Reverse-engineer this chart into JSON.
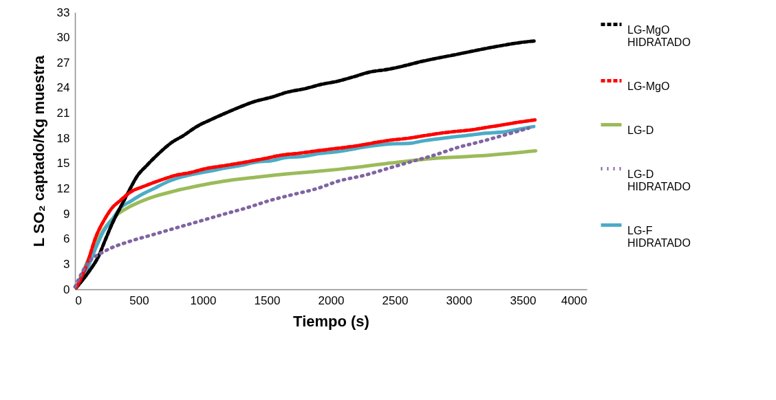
{
  "chart_data": {
    "type": "line",
    "xlabel": "Tiempo (s)",
    "ylabel": "L SO₂ captado/Kg muestra",
    "xlim": [
      0,
      4000
    ],
    "xticks": [
      0,
      500,
      1000,
      1500,
      2000,
      2500,
      3000,
      3500,
      4000
    ],
    "ylim": [
      0,
      33
    ],
    "yticks": [
      0,
      3,
      6,
      9,
      12,
      15,
      18,
      21,
      24,
      27,
      30,
      33
    ],
    "grid": false,
    "legend": "right",
    "marker": "none",
    "series": [
      {
        "name": "LG-MgO HIDRATADO",
        "color": "#000000",
        "line_style": "dashed",
        "x": [
          10,
          113,
          183,
          237,
          290,
          380,
          435,
          478,
          570,
          656,
          756,
          845,
          952,
          1059,
          1177,
          1285,
          1409,
          1538,
          1661,
          1796,
          1919,
          2054,
          2172,
          2306,
          2441,
          2565,
          2694,
          2817,
          2952,
          3081,
          3210,
          3355,
          3478,
          3600
        ],
        "values": [
          0.2,
          2.2,
          3.9,
          5.9,
          7.8,
          10.5,
          12.1,
          13.3,
          14.9,
          16.2,
          17.5,
          18.3,
          19.4,
          20.2,
          21.0,
          21.7,
          22.4,
          22.9,
          23.5,
          23.9,
          24.4,
          24.8,
          25.3,
          25.9,
          26.2,
          26.6,
          27.1,
          27.5,
          27.9,
          28.3,
          28.7,
          29.1,
          29.4,
          29.6
        ]
      },
      {
        "name": "LG-MgO",
        "color": "#ff0000",
        "line_style": "dashed",
        "x": [
          10,
          91,
          167,
          226,
          290,
          355,
          435,
          543,
          667,
          790,
          898,
          1027,
          1150,
          1274,
          1382,
          1489,
          1618,
          1742,
          1887,
          1995,
          2242,
          2350,
          2479,
          2602,
          2726,
          2855,
          2962,
          3097,
          3220,
          3344,
          3462,
          3600
        ],
        "values": [
          0.2,
          2.9,
          6.4,
          8.2,
          9.7,
          10.6,
          11.6,
          12.3,
          13.0,
          13.6,
          13.9,
          14.4,
          14.7,
          15.0,
          15.3,
          15.6,
          16.0,
          16.2,
          16.5,
          16.7,
          17.2,
          17.5,
          17.8,
          18.0,
          18.3,
          18.6,
          18.8,
          19.0,
          19.3,
          19.6,
          19.9,
          20.2
        ]
      },
      {
        "name": "LG-D",
        "color": "#9bbb59",
        "line_style": "solid",
        "x": [
          10,
          91,
          167,
          237,
          306,
          398,
          505,
          629,
          774,
          952,
          1167,
          1382,
          1618,
          1849,
          2059,
          2441,
          2801,
          3156,
          3600
        ],
        "values": [
          0.2,
          3.1,
          5.6,
          7.4,
          8.6,
          9.6,
          10.4,
          11.1,
          11.7,
          12.3,
          12.9,
          13.3,
          13.7,
          14.0,
          14.3,
          15.0,
          15.6,
          15.9,
          16.5
        ]
      },
      {
        "name": "LG-D HIDRATADO",
        "color": "#8064a2",
        "line_style": "dotted",
        "x": [
          0,
          90,
          240,
          425,
          605,
          785,
          970,
          1150,
          1340,
          1525,
          1705,
          1890,
          2060,
          2265,
          2445,
          2625,
          2810,
          2990,
          3170,
          3360,
          3545
        ],
        "values": [
          0.3,
          2.9,
          4.6,
          5.7,
          6.5,
          7.3,
          8.1,
          8.9,
          9.7,
          10.6,
          11.3,
          12.0,
          12.9,
          13.6,
          14.4,
          15.2,
          16.0,
          16.9,
          17.6,
          18.4,
          19.2
        ]
      },
      {
        "name": "LG-F HIDRATADO",
        "color": "#4bacc6",
        "line_style": "solid",
        "x": [
          10,
          91,
          167,
          226,
          290,
          355,
          435,
          522,
          629,
          720,
          812,
          952,
          1059,
          1188,
          1274,
          1435,
          1527,
          1650,
          1758,
          1919,
          2048,
          2134,
          2242,
          2441,
          2618,
          2726,
          2925,
          3102,
          3210,
          3371,
          3479,
          3586
        ],
        "values": [
          0.2,
          2.3,
          5.1,
          7.0,
          8.3,
          9.7,
          10.5,
          11.3,
          12.1,
          12.8,
          13.3,
          13.8,
          14.1,
          14.5,
          14.7,
          15.2,
          15.3,
          15.7,
          15.8,
          16.2,
          16.4,
          16.6,
          16.9,
          17.3,
          17.4,
          17.7,
          18.1,
          18.4,
          18.6,
          18.8,
          19.1,
          19.4
        ]
      }
    ]
  }
}
